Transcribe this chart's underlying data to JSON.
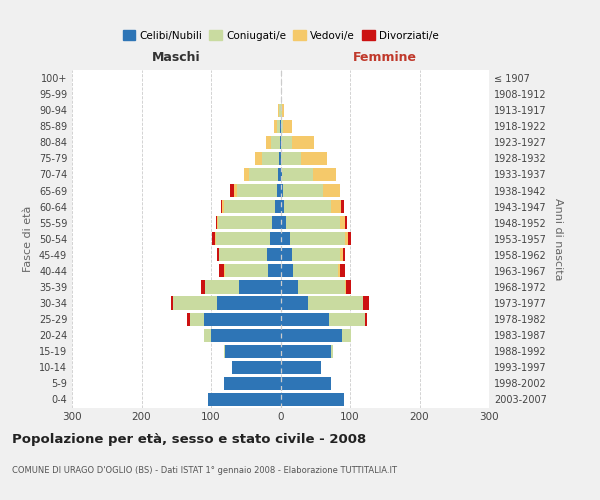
{
  "age_groups": [
    "0-4",
    "5-9",
    "10-14",
    "15-19",
    "20-24",
    "25-29",
    "30-34",
    "35-39",
    "40-44",
    "45-49",
    "50-54",
    "55-59",
    "60-64",
    "65-69",
    "70-74",
    "75-79",
    "80-84",
    "85-89",
    "90-94",
    "95-99",
    "100+"
  ],
  "birth_years": [
    "2003-2007",
    "1998-2002",
    "1993-1997",
    "1988-1992",
    "1983-1987",
    "1978-1982",
    "1973-1977",
    "1968-1972",
    "1963-1967",
    "1958-1962",
    "1953-1957",
    "1948-1952",
    "1943-1947",
    "1938-1942",
    "1933-1937",
    "1928-1932",
    "1923-1927",
    "1918-1922",
    "1913-1917",
    "1908-1912",
    "≤ 1907"
  ],
  "male_celibi": [
    105,
    82,
    70,
    80,
    100,
    110,
    92,
    60,
    18,
    20,
    15,
    12,
    8,
    5,
    4,
    2,
    1,
    1,
    0,
    0,
    0
  ],
  "male_coniugati": [
    0,
    0,
    0,
    2,
    10,
    20,
    62,
    48,
    62,
    68,
    78,
    78,
    73,
    58,
    42,
    25,
    12,
    4,
    2,
    0,
    0
  ],
  "male_vedovi": [
    0,
    0,
    0,
    0,
    0,
    0,
    1,
    1,
    1,
    1,
    1,
    2,
    3,
    4,
    7,
    10,
    8,
    4,
    1,
    0,
    0
  ],
  "male_divorziati": [
    0,
    0,
    0,
    0,
    0,
    5,
    2,
    5,
    8,
    3,
    5,
    1,
    2,
    5,
    0,
    0,
    0,
    0,
    0,
    0,
    0
  ],
  "female_celibi": [
    92,
    72,
    58,
    72,
    88,
    70,
    40,
    25,
    18,
    16,
    13,
    8,
    5,
    3,
    2,
    1,
    0,
    0,
    0,
    0,
    0
  ],
  "female_coniugati": [
    0,
    0,
    0,
    4,
    14,
    52,
    78,
    68,
    65,
    70,
    80,
    78,
    68,
    58,
    45,
    28,
    16,
    4,
    2,
    0,
    0
  ],
  "female_vedovi": [
    0,
    0,
    0,
    0,
    0,
    0,
    1,
    1,
    2,
    4,
    4,
    7,
    14,
    24,
    33,
    38,
    32,
    13,
    3,
    1,
    0
  ],
  "female_divorziati": [
    0,
    0,
    0,
    0,
    0,
    3,
    8,
    8,
    8,
    3,
    4,
    3,
    5,
    0,
    0,
    0,
    0,
    0,
    0,
    0,
    0
  ],
  "colors": {
    "celibi": "#2e75b6",
    "coniugati": "#c9dba0",
    "vedovi": "#f5c96a",
    "divorziati": "#cc1111"
  },
  "title": "Popolazione per età, sesso e stato civile - 2008",
  "subtitle": "COMUNE DI URAGO D'OGLIO (BS) - Dati ISTAT 1° gennaio 2008 - Elaborazione TUTTITALIA.IT",
  "maschi_label": "Maschi",
  "femmine_label": "Femmine",
  "ylabel_left": "Fasce di età",
  "ylabel_right": "Anni di nascita",
  "xlim": 300,
  "bg_color": "#f0f0f0",
  "plot_bg": "#ffffff"
}
